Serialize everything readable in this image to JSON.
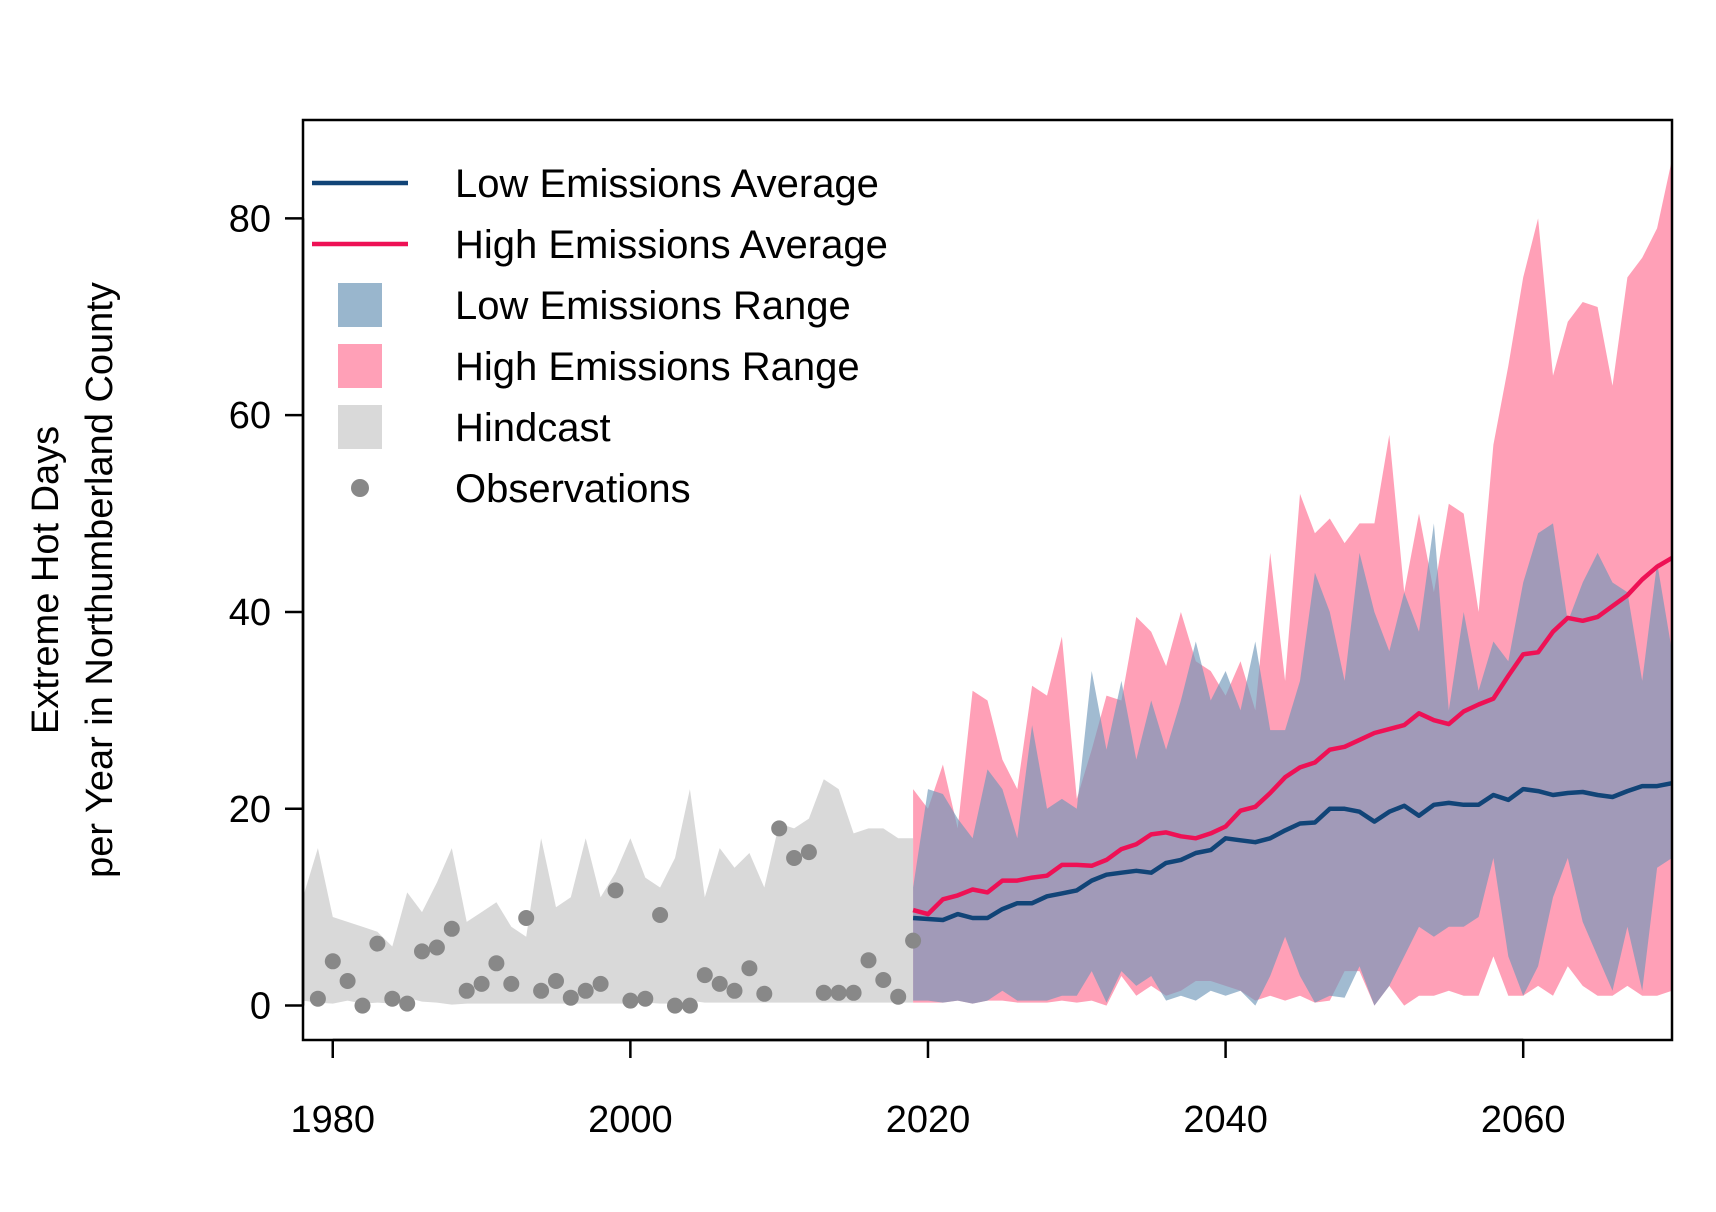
{
  "chart_data": {
    "type": "line",
    "title": "",
    "xlabel": "",
    "ylabel_lines": [
      "Extreme Hot Days",
      "per Year in Northumberland County"
    ],
    "xlim": [
      1978,
      2070
    ],
    "ylim": [
      -3.5,
      90
    ],
    "x_ticks": [
      1980,
      2000,
      2020,
      2040,
      2060
    ],
    "y_ticks": [
      0,
      20,
      40,
      60,
      80
    ],
    "grid": false,
    "legend_position": "top-left",
    "colors": {
      "low_avg": "#114477",
      "high_avg": "#EE1155",
      "low_range": "#6E97B8",
      "high_range": "#FF7799",
      "hindcast": "#D9D9D9",
      "observations": "#888888"
    },
    "legend": [
      {
        "label": "Low Emissions Average",
        "kind": "line",
        "color_key": "low_avg"
      },
      {
        "label": "High Emissions Average",
        "kind": "line",
        "color_key": "high_avg"
      },
      {
        "label": "Low Emissions Range",
        "kind": "box",
        "color_key": "low_range"
      },
      {
        "label": "High Emissions Range",
        "kind": "box",
        "color_key": "high_range"
      },
      {
        "label": "Hindcast",
        "kind": "box",
        "color_key": "hindcast"
      },
      {
        "label": "Observations",
        "kind": "point",
        "color_key": "observations"
      }
    ],
    "hindcast_range": {
      "x": [
        1978,
        1979,
        1980,
        1981,
        1982,
        1983,
        1984,
        1985,
        1986,
        1987,
        1988,
        1989,
        1990,
        1991,
        1992,
        1993,
        1994,
        1995,
        1996,
        1997,
        1998,
        1999,
        2000,
        2001,
        2002,
        2003,
        2004,
        2005,
        2006,
        2007,
        2008,
        2009,
        2010,
        2011,
        2012,
        2013,
        2014,
        2015,
        2016,
        2017,
        2018,
        2019
      ],
      "upper": [
        11,
        16,
        9,
        8.5,
        8,
        7.5,
        6,
        11.5,
        9.5,
        12.5,
        16,
        8.5,
        9.5,
        10.5,
        8,
        7,
        17,
        10,
        11,
        17,
        11,
        13.5,
        17,
        13,
        12,
        15,
        22,
        11,
        16,
        14,
        15.5,
        12,
        18.5,
        18,
        19,
        23,
        22,
        17.5,
        18,
        18,
        17,
        17
      ],
      "lower": [
        0.5,
        0.3,
        0.2,
        0.5,
        0.2,
        0.3,
        0.2,
        0.8,
        0.4,
        0.3,
        0.1,
        0.2,
        0.2,
        0.2,
        0.2,
        0.2,
        0.2,
        0.2,
        0.2,
        0.2,
        0.2,
        0.2,
        0.2,
        0.3,
        0.2,
        0.2,
        0.5,
        0.3,
        0.3,
        0.3,
        0.3,
        0.3,
        0.3,
        0.3,
        0.3,
        0.3,
        0.3,
        0.3,
        0.3,
        0.3,
        0.3,
        0.3
      ]
    },
    "observations": {
      "x": [
        1979,
        1980,
        1981,
        1982,
        1983,
        1984,
        1985,
        1986,
        1987,
        1988,
        1989,
        1990,
        1991,
        1992,
        1993,
        1994,
        1995,
        1996,
        1997,
        1998,
        1999,
        2000,
        2001,
        2002,
        2003,
        2004,
        2005,
        2006,
        2007,
        2008,
        2009,
        2010,
        2011,
        2012,
        2013,
        2014,
        2015,
        2016,
        2017,
        2018,
        2019
      ],
      "y": [
        0.7,
        4.5,
        2.5,
        0,
        6.3,
        0.7,
        0.2,
        5.5,
        5.9,
        7.8,
        1.5,
        2.2,
        4.3,
        2.2,
        8.9,
        1.5,
        2.5,
        0.8,
        1.5,
        2.2,
        11.7,
        0.5,
        0.7,
        9.2,
        0,
        0,
        3.1,
        2.2,
        1.5,
        3.8,
        1.2,
        18,
        15,
        15.6,
        1.3,
        1.3,
        1.3,
        4.6,
        2.6,
        0.9,
        6.6
      ]
    },
    "low_emissions_range": {
      "x": [
        2019,
        2020,
        2021,
        2022,
        2023,
        2024,
        2025,
        2026,
        2027,
        2028,
        2029,
        2030,
        2031,
        2032,
        2033,
        2034,
        2035,
        2036,
        2037,
        2038,
        2039,
        2040,
        2041,
        2042,
        2043,
        2044,
        2045,
        2046,
        2047,
        2048,
        2049,
        2050,
        2051,
        2052,
        2053,
        2054,
        2055,
        2056,
        2057,
        2058,
        2059,
        2060,
        2061,
        2062,
        2063,
        2064,
        2065,
        2066,
        2067,
        2068,
        2069,
        2070
      ],
      "upper": [
        12,
        22,
        21.5,
        19,
        17,
        24,
        22,
        17,
        28.5,
        20,
        21,
        20,
        34,
        26,
        33,
        25,
        31,
        26,
        31,
        37,
        31,
        34,
        30,
        37,
        28,
        28,
        33,
        44,
        40,
        33,
        46,
        40,
        36,
        42,
        38,
        49,
        30,
        40,
        32,
        37,
        35,
        43,
        48,
        49,
        39,
        43,
        46,
        43,
        42,
        33,
        45,
        36
      ],
      "lower": [
        0.5,
        0.5,
        0.3,
        0.5,
        0.2,
        0.5,
        1.5,
        0.5,
        0.5,
        0.5,
        1,
        1,
        3.5,
        0.3,
        3.5,
        2,
        3,
        0.5,
        1,
        0.5,
        1.5,
        1,
        1.5,
        0,
        3,
        7,
        3,
        0.3,
        1,
        0.8,
        4,
        0,
        2,
        5,
        8,
        7,
        8,
        8,
        9,
        15,
        5,
        1,
        4,
        11,
        15,
        8.5,
        5,
        1.5,
        8,
        1.5,
        14,
        15
      ]
    },
    "high_emissions_range": {
      "x": [
        2019,
        2020,
        2021,
        2022,
        2023,
        2024,
        2025,
        2026,
        2027,
        2028,
        2029,
        2030,
        2031,
        2032,
        2033,
        2034,
        2035,
        2036,
        2037,
        2038,
        2039,
        2040,
        2041,
        2042,
        2043,
        2044,
        2045,
        2046,
        2047,
        2048,
        2049,
        2050,
        2051,
        2052,
        2053,
        2054,
        2055,
        2056,
        2057,
        2058,
        2059,
        2060,
        2061,
        2062,
        2063,
        2064,
        2065,
        2066,
        2067,
        2068,
        2069,
        2070
      ],
      "upper": [
        22,
        20,
        24.5,
        18,
        32,
        31,
        25,
        22,
        32.5,
        31.5,
        37.5,
        21,
        26,
        31.5,
        31,
        39.5,
        38,
        34.5,
        40,
        35,
        34,
        31.5,
        35,
        30,
        46,
        33,
        52,
        48,
        49.5,
        47,
        49,
        49,
        58,
        42,
        50,
        42,
        51,
        50,
        40,
        57,
        65,
        74,
        80,
        64,
        69.5,
        71.5,
        71,
        63,
        74,
        76,
        79,
        86
      ],
      "lower": [
        0.3,
        0.3,
        0.3,
        0.5,
        0.2,
        0.5,
        0.5,
        0.3,
        0.3,
        0.3,
        0.5,
        0.3,
        0.5,
        0,
        3,
        1,
        2,
        1,
        1.5,
        2.5,
        2.5,
        2,
        1.5,
        0.5,
        1,
        0.5,
        1,
        0.3,
        0.5,
        3.5,
        3.5,
        0,
        2,
        0,
        1,
        1,
        1.5,
        1,
        1,
        5,
        1,
        1,
        2,
        1,
        4,
        2,
        1,
        1,
        2,
        1,
        1,
        1.5
      ]
    },
    "low_emissions_average": {
      "x": [
        2019,
        2020,
        2021,
        2022,
        2023,
        2024,
        2025,
        2026,
        2027,
        2028,
        2029,
        2030,
        2031,
        2032,
        2033,
        2034,
        2035,
        2036,
        2037,
        2038,
        2039,
        2040,
        2041,
        2042,
        2043,
        2044,
        2045,
        2046,
        2047,
        2048,
        2049,
        2050,
        2051,
        2052,
        2053,
        2054,
        2055,
        2056,
        2057,
        2058,
        2059,
        2060,
        2061,
        2062,
        2063,
        2064,
        2065,
        2066,
        2067,
        2068,
        2069,
        2070
      ],
      "y": [
        8.9,
        8.8,
        8.7,
        9.3,
        8.9,
        8.9,
        9.8,
        10.4,
        10.4,
        11.1,
        11.4,
        11.7,
        12.7,
        13.3,
        13.5,
        13.7,
        13.5,
        14.5,
        14.8,
        15.5,
        15.8,
        17,
        16.8,
        16.6,
        17,
        17.8,
        18.5,
        18.6,
        20,
        20,
        19.7,
        18.7,
        19.7,
        20.3,
        19.3,
        20.4,
        20.6,
        20.4,
        20.4,
        21.4,
        20.9,
        22,
        21.8,
        21.4,
        21.6,
        21.7,
        21.4,
        21.2,
        21.8,
        22.3,
        22.3,
        22.6
      ]
    },
    "high_emissions_average": {
      "x": [
        2019,
        2020,
        2021,
        2022,
        2023,
        2024,
        2025,
        2026,
        2027,
        2028,
        2029,
        2030,
        2031,
        2032,
        2033,
        2034,
        2035,
        2036,
        2037,
        2038,
        2039,
        2040,
        2041,
        2042,
        2043,
        2044,
        2045,
        2046,
        2047,
        2048,
        2049,
        2050,
        2051,
        2052,
        2053,
        2054,
        2055,
        2056,
        2057,
        2058,
        2059,
        2060,
        2061,
        2062,
        2063,
        2064,
        2065,
        2066,
        2067,
        2068,
        2069,
        2070
      ],
      "y": [
        9.7,
        9.3,
        10.8,
        11.2,
        11.8,
        11.5,
        12.7,
        12.7,
        13,
        13.2,
        14.3,
        14.3,
        14.2,
        14.8,
        15.9,
        16.4,
        17.4,
        17.6,
        17.2,
        17,
        17.5,
        18.2,
        19.8,
        20.2,
        21.6,
        23.2,
        24.2,
        24.7,
        26,
        26.3,
        27,
        27.7,
        28.1,
        28.5,
        29.7,
        29,
        28.6,
        29.9,
        30.6,
        31.2,
        33.5,
        35.7,
        35.9,
        38,
        39.4,
        39.1,
        39.5,
        40.6,
        41.7,
        43.3,
        44.6,
        45.5
      ]
    }
  }
}
